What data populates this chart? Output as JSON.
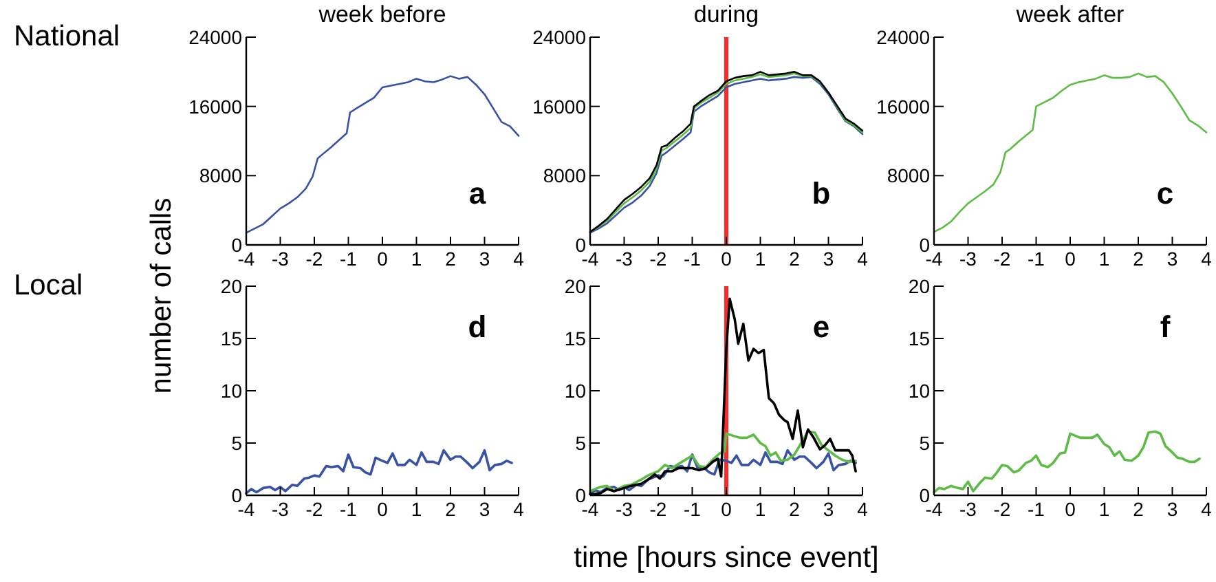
{
  "chart_data": [
    {
      "type": "line",
      "title": "week before",
      "xlim": [
        -4,
        4
      ],
      "xticks": [
        -4,
        -3,
        -2,
        -1,
        0,
        1,
        2,
        3,
        4
      ],
      "ylim": [
        0,
        24000
      ],
      "yticks": [
        0,
        8000,
        16000,
        24000
      ],
      "annotations": [
        "a",
        "National"
      ],
      "series": [
        {
          "color": "#3953a4",
          "x": [
            -4,
            -3.75,
            -3.5,
            -3.25,
            -3,
            -2.75,
            -2.5,
            -2.25,
            -2.05,
            -1.9,
            -1.75,
            -1.5,
            -1.25,
            -1.05,
            -0.95,
            -0.75,
            -0.5,
            -0.25,
            0,
            0.25,
            0.5,
            0.75,
            1,
            1.25,
            1.5,
            1.75,
            2,
            2.25,
            2.5,
            2.75,
            3,
            3.25,
            3.5,
            3.75,
            4
          ],
          "values": [
            1400,
            1900,
            2400,
            3300,
            4200,
            4800,
            5500,
            6500,
            7900,
            10000,
            10500,
            11300,
            12200,
            12900,
            15300,
            15800,
            16400,
            17000,
            18200,
            18400,
            18600,
            18800,
            19200,
            18900,
            18800,
            19100,
            19500,
            19200,
            19400,
            18500,
            17400,
            15800,
            14200,
            13700,
            12600
          ]
        }
      ]
    },
    {
      "type": "line",
      "title": "during",
      "xlim": [
        -4,
        4
      ],
      "xticks": [
        -4,
        -3,
        -2,
        -1,
        0,
        1,
        2,
        3,
        4
      ],
      "ylim": [
        0,
        24000
      ],
      "yticks": [
        0,
        8000,
        16000,
        24000
      ],
      "annotations": [
        "b"
      ],
      "ref_lines": [
        {
          "axis": "x",
          "value": 0,
          "color": "#ff2a2a"
        }
      ],
      "series": [
        {
          "color": "#3953a4",
          "x": [
            -4,
            -3.75,
            -3.5,
            -3.25,
            -3,
            -2.75,
            -2.5,
            -2.25,
            -2.05,
            -1.9,
            -1.75,
            -1.5,
            -1.25,
            -1.05,
            -0.95,
            -0.75,
            -0.5,
            -0.25,
            0,
            0.25,
            0.5,
            0.75,
            1,
            1.25,
            1.5,
            1.75,
            2,
            2.25,
            2.5,
            2.75,
            3,
            3.25,
            3.5,
            3.75,
            4
          ],
          "values": [
            1400,
            1900,
            2500,
            3400,
            4300,
            4900,
            5700,
            6800,
            8300,
            10300,
            10700,
            11500,
            12300,
            13000,
            15400,
            16000,
            16600,
            17200,
            18200,
            18600,
            18800,
            19000,
            19200,
            19000,
            19100,
            19200,
            19400,
            19300,
            19400,
            18600,
            17400,
            15800,
            14300,
            13700,
            12800
          ]
        },
        {
          "color": "#5dbb46",
          "x": [
            -4,
            -3.75,
            -3.5,
            -3.25,
            -3,
            -2.75,
            -2.5,
            -2.25,
            -2.05,
            -1.9,
            -1.75,
            -1.5,
            -1.25,
            -1.05,
            -0.95,
            -0.75,
            -0.5,
            -0.25,
            0,
            0.25,
            0.5,
            0.75,
            1,
            1.25,
            1.5,
            1.75,
            2,
            2.25,
            2.5,
            2.75,
            3,
            3.25,
            3.5,
            3.75,
            4
          ],
          "values": [
            1500,
            2100,
            2800,
            3800,
            4800,
            5500,
            6300,
            7300,
            8800,
            10900,
            11200,
            12000,
            12800,
            13500,
            15800,
            16400,
            17000,
            17600,
            18600,
            19000,
            19200,
            19400,
            19700,
            19400,
            19500,
            19600,
            19800,
            19500,
            19500,
            18800,
            17600,
            16000,
            14400,
            13800,
            13000
          ]
        },
        {
          "color": "#000000",
          "x": [
            -4,
            -3.75,
            -3.5,
            -3.25,
            -3,
            -2.75,
            -2.5,
            -2.25,
            -2.05,
            -1.9,
            -1.75,
            -1.5,
            -1.25,
            -1.05,
            -0.95,
            -0.75,
            -0.5,
            -0.25,
            0,
            0.25,
            0.5,
            0.75,
            1,
            1.25,
            1.5,
            1.75,
            2,
            2.25,
            2.5,
            2.75,
            3,
            3.25,
            3.5,
            3.75,
            4
          ],
          "values": [
            1500,
            2200,
            3000,
            4100,
            5200,
            5900,
            6700,
            7700,
            9200,
            11300,
            11500,
            12400,
            13200,
            14000,
            16000,
            16600,
            17300,
            17800,
            18900,
            19300,
            19500,
            19600,
            20000,
            19600,
            19700,
            19800,
            20000,
            19600,
            19600,
            18900,
            17600,
            16100,
            14600,
            14000,
            13200
          ]
        }
      ]
    },
    {
      "type": "line",
      "title": "week after",
      "xlim": [
        -4,
        4
      ],
      "xticks": [
        -4,
        -3,
        -2,
        -1,
        0,
        1,
        2,
        3,
        4
      ],
      "ylim": [
        0,
        24000
      ],
      "yticks": [
        0,
        8000,
        16000,
        24000
      ],
      "annotations": [
        "c"
      ],
      "series": [
        {
          "color": "#5dbb46",
          "x": [
            -4,
            -3.75,
            -3.5,
            -3.25,
            -3,
            -2.75,
            -2.5,
            -2.25,
            -2.05,
            -1.9,
            -1.75,
            -1.5,
            -1.25,
            -1.1,
            -1.0,
            -0.75,
            -0.5,
            -0.25,
            0,
            0.25,
            0.5,
            0.75,
            1,
            1.25,
            1.5,
            1.75,
            2,
            2.25,
            2.5,
            2.75,
            3,
            3.25,
            3.5,
            3.75,
            4
          ],
          "values": [
            1500,
            2000,
            2700,
            3800,
            4800,
            5500,
            6200,
            7000,
            8400,
            10700,
            11100,
            12000,
            12800,
            13300,
            16000,
            16500,
            17000,
            17800,
            18500,
            18800,
            19000,
            19200,
            19600,
            19300,
            19300,
            19400,
            19800,
            19400,
            19500,
            18800,
            17500,
            16000,
            14400,
            13800,
            13000
          ]
        }
      ]
    },
    {
      "type": "line",
      "ylabel": "number of calls",
      "xlim": [
        -4,
        4
      ],
      "xticks": [
        -4,
        -3,
        -2,
        -1,
        0,
        1,
        2,
        3,
        4
      ],
      "ylim": [
        0,
        20
      ],
      "yticks": [
        0,
        5,
        10,
        15,
        20
      ],
      "annotations": [
        "d",
        "Local"
      ],
      "series": [
        {
          "color": "#3953a4",
          "x": [
            -4,
            -3.85,
            -3.7,
            -3.5,
            -3.3,
            -3.15,
            -3,
            -2.85,
            -2.65,
            -2.5,
            -2.3,
            -2.15,
            -2,
            -1.85,
            -1.65,
            -1.5,
            -1.3,
            -1.15,
            -1,
            -0.85,
            -0.65,
            -0.5,
            -0.35,
            -0.2,
            0,
            0.15,
            0.3,
            0.45,
            0.65,
            0.8,
            1,
            1.15,
            1.3,
            1.5,
            1.65,
            1.8,
            2,
            2.15,
            2.3,
            2.5,
            2.65,
            2.85,
            3,
            3.15,
            3.3,
            3.5,
            3.65,
            3.8
          ],
          "values": [
            0.2,
            0.6,
            0.3,
            0.7,
            0.8,
            0.5,
            0.8,
            0.4,
            1.0,
            0.9,
            1.6,
            1.7,
            1.9,
            1.8,
            2.8,
            2.7,
            2.8,
            2.3,
            3.9,
            2.7,
            2.6,
            2.2,
            2.0,
            3.6,
            3.3,
            3.1,
            4.0,
            2.9,
            2.9,
            3.4,
            2.9,
            4.1,
            3.2,
            3.2,
            3.0,
            4.3,
            3.4,
            3.7,
            3.7,
            3.1,
            2.6,
            3.2,
            4.3,
            2.4,
            2.9,
            3.0,
            3.3,
            3.1
          ]
        }
      ]
    },
    {
      "type": "line",
      "xlabel": "time [hours since event]",
      "xlim": [
        -4,
        4
      ],
      "xticks": [
        -4,
        -3,
        -2,
        -1,
        0,
        1,
        2,
        3,
        4
      ],
      "ylim": [
        0,
        20
      ],
      "yticks": [
        0,
        5,
        10,
        15,
        20
      ],
      "annotations": [
        "e"
      ],
      "ref_lines": [
        {
          "axis": "x",
          "value": 0,
          "color": "#ff2a2a"
        }
      ],
      "series": [
        {
          "color": "#3953a4",
          "x": [
            -4,
            -3.85,
            -3.7,
            -3.5,
            -3.3,
            -3.15,
            -3,
            -2.85,
            -2.65,
            -2.5,
            -2.3,
            -2.15,
            -2,
            -1.85,
            -1.65,
            -1.5,
            -1.3,
            -1.15,
            -1,
            -0.85,
            -0.65,
            -0.5,
            -0.35,
            -0.2,
            0,
            0.15,
            0.3,
            0.45,
            0.65,
            0.8,
            1,
            1.15,
            1.3,
            1.5,
            1.65,
            1.8,
            2,
            2.15,
            2.3,
            2.5,
            2.65,
            2.85,
            3,
            3.15,
            3.3,
            3.5,
            3.65,
            3.8
          ],
          "values": [
            0.2,
            0.5,
            0.3,
            0.7,
            0.8,
            0.5,
            0.8,
            0.5,
            1.0,
            0.9,
            1.5,
            1.7,
            1.9,
            1.8,
            2.8,
            2.7,
            2.8,
            2.3,
            3.9,
            2.7,
            2.6,
            2.2,
            2.0,
            3.4,
            3.3,
            3.1,
            3.8,
            2.9,
            2.9,
            3.4,
            2.9,
            4.1,
            3.2,
            3.2,
            3.0,
            4.3,
            3.4,
            3.7,
            3.7,
            3.1,
            2.6,
            3.2,
            4.0,
            2.4,
            2.9,
            3.0,
            3.3,
            3.1
          ]
        },
        {
          "color": "#5dbb46",
          "x": [
            -4,
            -3.7,
            -3.5,
            -3.3,
            -3,
            -2.8,
            -2.5,
            -2.3,
            -2,
            -1.8,
            -1.6,
            -1.4,
            -1.2,
            -1,
            -0.8,
            -0.6,
            -0.4,
            -0.2,
            -0.05,
            0,
            0.2,
            0.4,
            0.6,
            0.8,
            1,
            1.15,
            1.3,
            1.45,
            1.6,
            1.8,
            2,
            2.2,
            2.4,
            2.6,
            2.8,
            3,
            3.2,
            3.4,
            3.6,
            3.8
          ],
          "values": [
            0.4,
            0.8,
            0.9,
            0.4,
            0.9,
            1.0,
            1.5,
            1.9,
            2.3,
            2.9,
            2.6,
            3.0,
            3.4,
            3.8,
            2.8,
            2.7,
            3.4,
            4.0,
            4.2,
            5.9,
            5.7,
            5.5,
            5.5,
            5.8,
            5.0,
            4.7,
            3.8,
            4.1,
            3.3,
            3.4,
            3.9,
            5.0,
            6.1,
            6.0,
            4.8,
            4.3,
            3.8,
            3.4,
            3.2,
            3.3
          ]
        },
        {
          "color": "#000000",
          "x": [
            -4,
            -3.7,
            -3.5,
            -3.3,
            -3,
            -2.8,
            -2.5,
            -2.3,
            -2.1,
            -1.95,
            -1.8,
            -1.6,
            -1.4,
            -1.2,
            -1,
            -0.8,
            -0.6,
            -0.4,
            -0.25,
            -0.15,
            0,
            0.1,
            0.25,
            0.35,
            0.5,
            0.65,
            0.8,
            0.95,
            1.1,
            1.25,
            1.4,
            1.55,
            1.7,
            1.8,
            1.95,
            2.1,
            2.25,
            2.4,
            2.55,
            2.75,
            2.9,
            3.05,
            3.2,
            3.4,
            3.6,
            3.7,
            3.8
          ],
          "values": [
            0.1,
            0.2,
            0.6,
            0.4,
            0.7,
            0.9,
            1.1,
            1.5,
            2.0,
            1.6,
            2.3,
            2.3,
            2.6,
            2.6,
            2.6,
            2.4,
            2.6,
            3.2,
            3.5,
            1.8,
            14,
            18.8,
            16.8,
            14.5,
            16.4,
            12.9,
            14.0,
            13.6,
            13.9,
            9.3,
            8.8,
            7.7,
            7.2,
            7.0,
            5.4,
            8.1,
            4.6,
            6.3,
            5.6,
            4.4,
            4.8,
            5.4,
            4.3,
            4.3,
            4.3,
            3.8,
            2.3
          ]
        }
      ]
    },
    {
      "type": "line",
      "xlim": [
        -4,
        4
      ],
      "xticks": [
        -4,
        -3,
        -2,
        -1,
        0,
        1,
        2,
        3,
        4
      ],
      "ylim": [
        0,
        20
      ],
      "yticks": [
        0,
        5,
        10,
        15,
        20
      ],
      "annotations": [
        "f"
      ],
      "series": [
        {
          "color": "#5dbb46",
          "x": [
            -4,
            -3.85,
            -3.7,
            -3.5,
            -3.3,
            -3.15,
            -3,
            -2.85,
            -2.65,
            -2.5,
            -2.3,
            -2.15,
            -2,
            -1.85,
            -1.65,
            -1.5,
            -1.3,
            -1.15,
            -1,
            -0.85,
            -0.65,
            -0.5,
            -0.3,
            -0.15,
            0,
            0.15,
            0.3,
            0.5,
            0.65,
            0.8,
            1,
            1.15,
            1.3,
            1.45,
            1.6,
            1.8,
            2,
            2.15,
            2.3,
            2.5,
            2.65,
            2.8,
            3,
            3.15,
            3.3,
            3.5,
            3.65,
            3.8
          ],
          "values": [
            0.3,
            0.7,
            0.6,
            0.9,
            0.7,
            0.6,
            1.3,
            0.4,
            1.2,
            1.7,
            1.6,
            2.2,
            2.9,
            2.8,
            2.2,
            2.4,
            3.1,
            3.3,
            3.8,
            2.9,
            2.7,
            3.1,
            4.0,
            4.1,
            5.9,
            5.7,
            5.5,
            5.5,
            5.5,
            5.8,
            4.9,
            4.6,
            3.8,
            4.2,
            3.4,
            3.3,
            3.8,
            4.6,
            6.0,
            6.1,
            5.9,
            4.7,
            4.1,
            3.6,
            3.5,
            3.2,
            3.2,
            3.5
          ]
        }
      ]
    }
  ]
}
